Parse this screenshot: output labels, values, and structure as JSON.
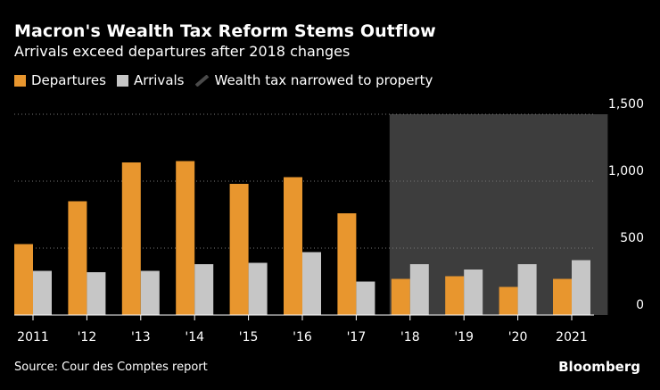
{
  "title": "Macron's Wealth Tax Reform Stems Outflow",
  "subtitle": "Arrivals exceed departures after 2018 changes",
  "legend": {
    "departures": "Departures",
    "arrivals": "Arrivals",
    "shade": "Wealth tax narrowed to property"
  },
  "source": "Source: Cour des Comptes report",
  "brand": "Bloomberg",
  "colors": {
    "departures": "#E8962E",
    "arrivals": "#C6C6C6",
    "shade": "#3D3D3D",
    "background": "#000000"
  },
  "chart_data": {
    "type": "bar",
    "title": "Macron's Wealth Tax Reform Stems Outflow",
    "subtitle": "Arrivals exceed departures after 2018 changes",
    "categories": [
      "2011",
      "'12",
      "'13",
      "'14",
      "'15",
      "'16",
      "'17",
      "'18",
      "'19",
      "'20",
      "2021"
    ],
    "series": [
      {
        "name": "Departures",
        "values": [
          530,
          850,
          1140,
          1150,
          980,
          1030,
          760,
          270,
          290,
          210,
          270
        ]
      },
      {
        "name": "Arrivals",
        "values": [
          330,
          320,
          330,
          380,
          390,
          470,
          250,
          380,
          340,
          380,
          410
        ]
      }
    ],
    "shaded_range": {
      "label": "Wealth tax narrowed to property",
      "from": "'18",
      "to": "2021"
    },
    "ylim": [
      0,
      1500
    ],
    "yticks": [
      0,
      500,
      1000,
      1500
    ],
    "ytick_labels": [
      "0",
      "500",
      "1,000",
      "1,500"
    ],
    "y_axis_position": "right",
    "grid": true,
    "legend_position": "top-left",
    "xlabel": "",
    "ylabel": ""
  }
}
